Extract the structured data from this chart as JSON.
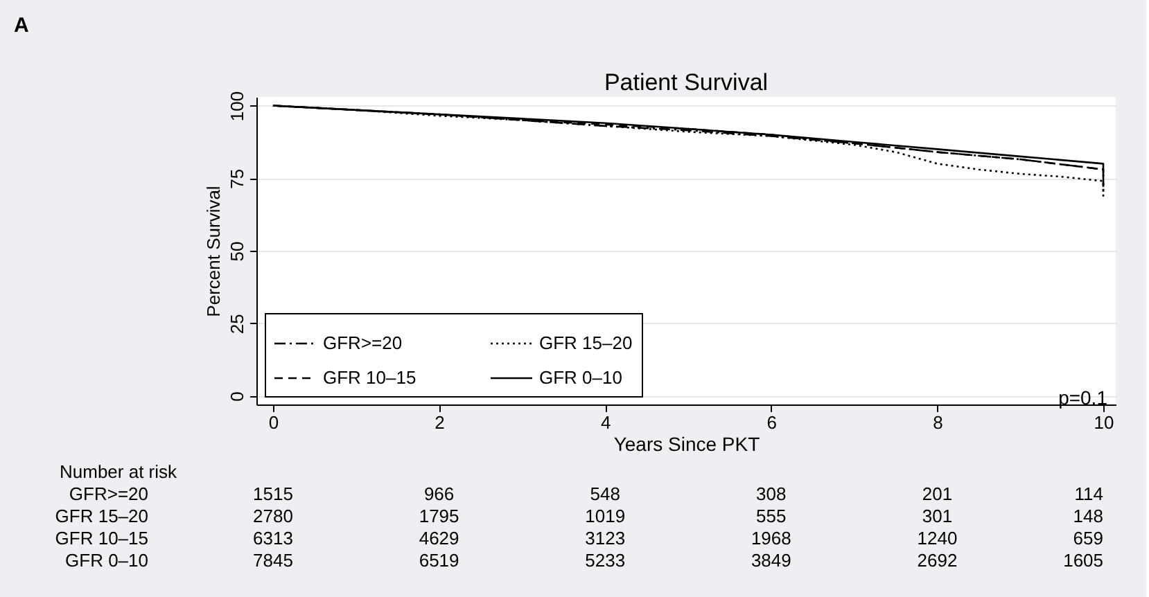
{
  "chart_data": {
    "type": "line",
    "title": "Patient Survival",
    "xlabel": "Years Since PKT",
    "ylabel": "Percent Survival",
    "xlim": [
      -0.2,
      10.15
    ],
    "ylim": [
      -3,
      103
    ],
    "xticks": [
      0,
      2,
      4,
      6,
      8,
      10
    ],
    "yticks": [
      0,
      25,
      50,
      75,
      100
    ],
    "grid": "y",
    "legend": "bottom left",
    "series": [
      {
        "name": "GFR>=20",
        "color": "#000000",
        "line_style": "dashdot",
        "x": [
          0,
          1,
          2,
          3,
          4,
          5,
          6,
          7,
          8,
          9,
          10,
          10
        ],
        "values": [
          100,
          98.5,
          97,
          95,
          93,
          91.5,
          89.5,
          87,
          84,
          81.5,
          78,
          70
        ]
      },
      {
        "name": "GFR 15–20",
        "color": "#000000",
        "line_style": "dotted",
        "x": [
          0,
          1,
          2,
          3,
          4,
          5,
          6,
          7,
          7.5,
          8,
          8.5,
          9,
          9.5,
          10,
          10
        ],
        "values": [
          100,
          98.5,
          96.5,
          95,
          93,
          91,
          89.5,
          86.5,
          84,
          80,
          78,
          76.5,
          75.5,
          74,
          68
        ]
      },
      {
        "name": "GFR 10–15",
        "color": "#000000",
        "line_style": "dashed",
        "x": [
          0,
          1,
          2,
          3,
          4,
          5,
          6,
          7,
          8,
          9,
          10,
          10
        ],
        "values": [
          100,
          98.5,
          97,
          95,
          93.5,
          92,
          90,
          87,
          84,
          81.5,
          78,
          72
        ]
      },
      {
        "name": "GFR 0–10",
        "color": "#000000",
        "line_style": "solid",
        "x": [
          0,
          1,
          2,
          3,
          4,
          5,
          6,
          7,
          8,
          9,
          10,
          10
        ],
        "values": [
          100,
          98.5,
          97,
          95.5,
          94,
          92,
          90,
          87.5,
          85,
          82.5,
          80,
          77
        ]
      }
    ],
    "annotations": [
      "A",
      "p=0.1",
      "Number at risk",
      "GFR>=20",
      "1515",
      "966",
      "548",
      "308",
      "201",
      "114",
      "GFR 15–20",
      "2780",
      "1795",
      "1019",
      "555",
      "301",
      "148",
      "GFR 10–15",
      "6313",
      "4629",
      "3123",
      "1968",
      "1240",
      "659",
      "GFR 0–10",
      "7845",
      "6519",
      "5233",
      "3849",
      "2692",
      "1605"
    ]
  }
}
